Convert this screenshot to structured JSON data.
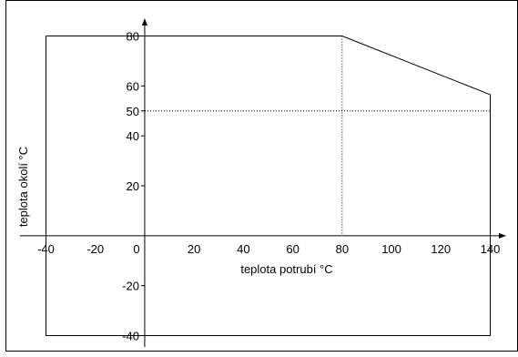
{
  "chart_data": {
    "type": "line",
    "xlabel": "teplota potrubí °C",
    "ylabel": "teplota okolí °C",
    "x_ticks": [
      -40,
      -20,
      0,
      20,
      40,
      60,
      80,
      100,
      120,
      140
    ],
    "y_ticks": [
      -40,
      -20,
      20,
      40,
      50,
      60,
      80
    ],
    "xlim": [
      -40,
      140
    ],
    "ylim": [
      -40,
      80
    ],
    "series": [
      {
        "x": [
          -40,
          80,
          140,
          140,
          -40,
          -40
        ],
        "y": [
          80,
          80,
          56.5,
          -40,
          -40,
          80
        ]
      }
    ],
    "reference_lines": [
      {
        "axis": "x",
        "value": 80
      },
      {
        "axis": "y",
        "value": 50
      }
    ],
    "grid": false
  }
}
